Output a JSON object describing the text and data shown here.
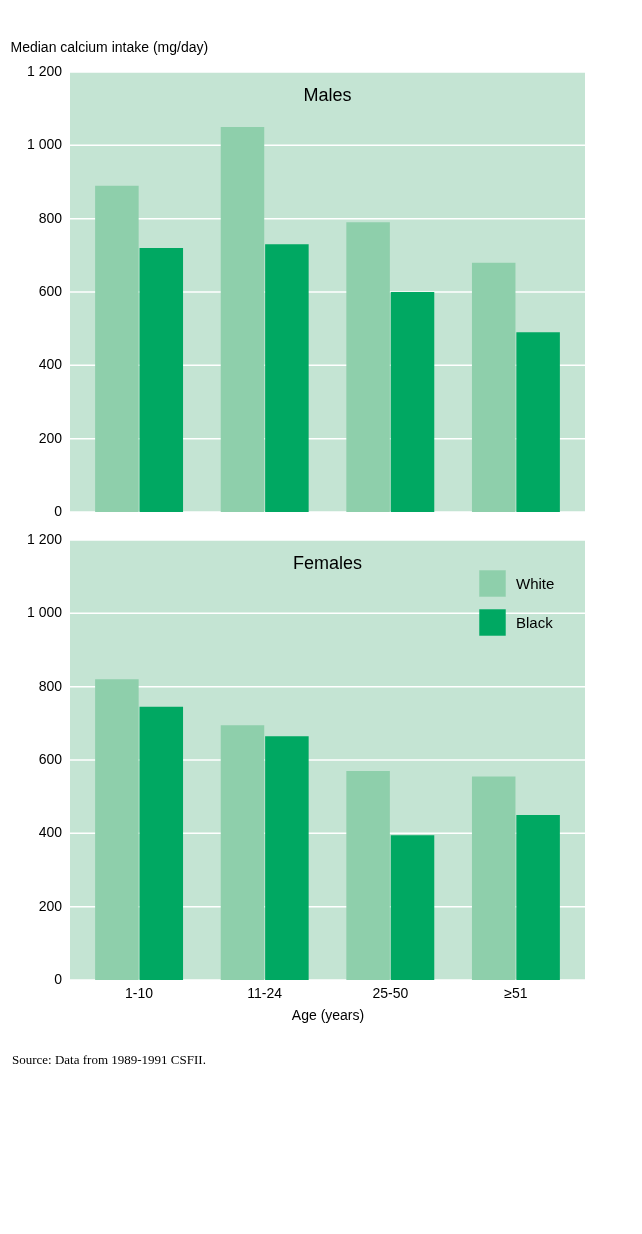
{
  "chart_data": [
    {
      "type": "bar",
      "title": "Males",
      "ylabel": "Median calcium intake (mg/day)",
      "categories": [
        null,
        null,
        null,
        null
      ],
      "series": [
        {
          "color": "#8ecfab",
          "values": [
            890,
            1050,
            790,
            680
          ]
        },
        {
          "color": "#00a862",
          "values": [
            720,
            730,
            600,
            490
          ]
        }
      ],
      "ylim": [
        0,
        1200
      ],
      "yticks": [
        0,
        200,
        400,
        600,
        800,
        1000,
        1200
      ],
      "grid": "y",
      "tick_labels": "y"
    },
    {
      "type": "bar",
      "title": "Females",
      "xlabel": "Age (years)",
      "categories": [
        "1-10",
        "11-24",
        "25-50",
        "≥51"
      ],
      "series": [
        {
          "name": "White",
          "color": "#8ecfab",
          "values": [
            820,
            695,
            570,
            555
          ]
        },
        {
          "name": "Black",
          "color": "#00a862",
          "values": [
            745,
            665,
            395,
            450
          ]
        }
      ],
      "ylim": [
        0,
        1200
      ],
      "yticks": [
        0,
        200,
        400,
        600,
        800,
        1000,
        1200
      ],
      "grid": "y",
      "legend": "top right",
      "annotations": [
        "Source: Data from 1989-1991 CSFII."
      ]
    }
  ]
}
